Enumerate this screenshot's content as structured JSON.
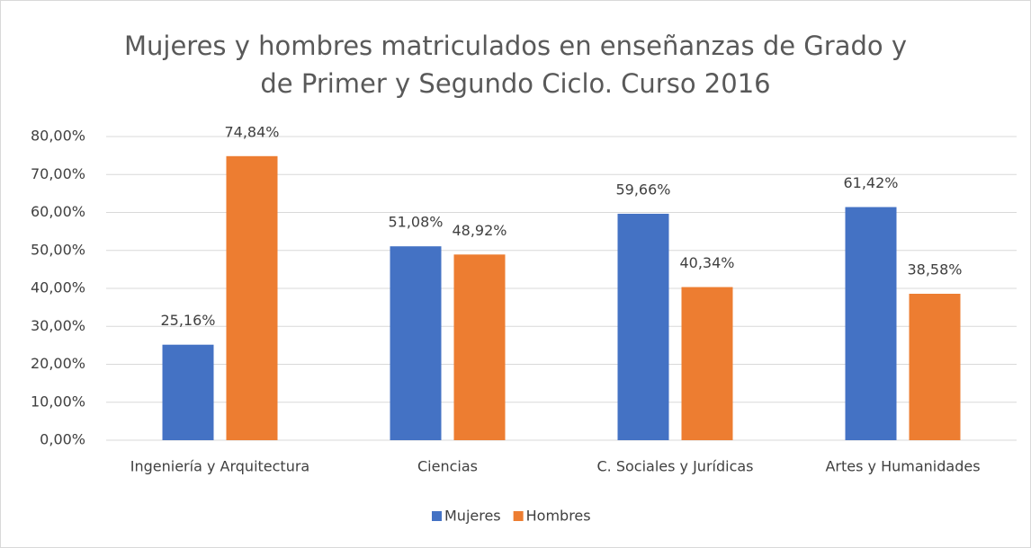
{
  "chart_data": {
    "type": "bar",
    "title": "Mujeres y hombres matriculados en enseñanzas de Grado y de Primer y Segundo Ciclo. Curso 2016",
    "categories": [
      "Ingeniería y Arquitectura",
      "Ciencias",
      "C. Sociales y Jurídicas",
      "Artes y Humanidades"
    ],
    "series": [
      {
        "name": "Mujeres",
        "color": "#4472c4",
        "values": [
          25.16,
          51.08,
          59.66,
          61.42
        ],
        "value_labels": [
          "25,16%",
          "51,08%",
          "59,66%",
          "61,42%"
        ]
      },
      {
        "name": "Hombres",
        "color": "#ed7d31",
        "values": [
          74.84,
          48.92,
          40.34,
          38.58
        ],
        "value_labels": [
          "74,84%",
          "48,92%",
          "40,34%",
          "38,58%"
        ]
      }
    ],
    "ylim": [
      0,
      80
    ],
    "yticks": [
      {
        "value": 0,
        "label": "0,00%"
      },
      {
        "value": 10,
        "label": "10,00%"
      },
      {
        "value": 20,
        "label": "20,00%"
      },
      {
        "value": 30,
        "label": "30,00%"
      },
      {
        "value": 40,
        "label": "40,00%"
      },
      {
        "value": 50,
        "label": "50,00%"
      },
      {
        "value": 60,
        "label": "60,00%"
      },
      {
        "value": 70,
        "label": "70,00%"
      },
      {
        "value": 80,
        "label": "80,00%"
      }
    ],
    "grid": true,
    "legend": "bottom"
  }
}
